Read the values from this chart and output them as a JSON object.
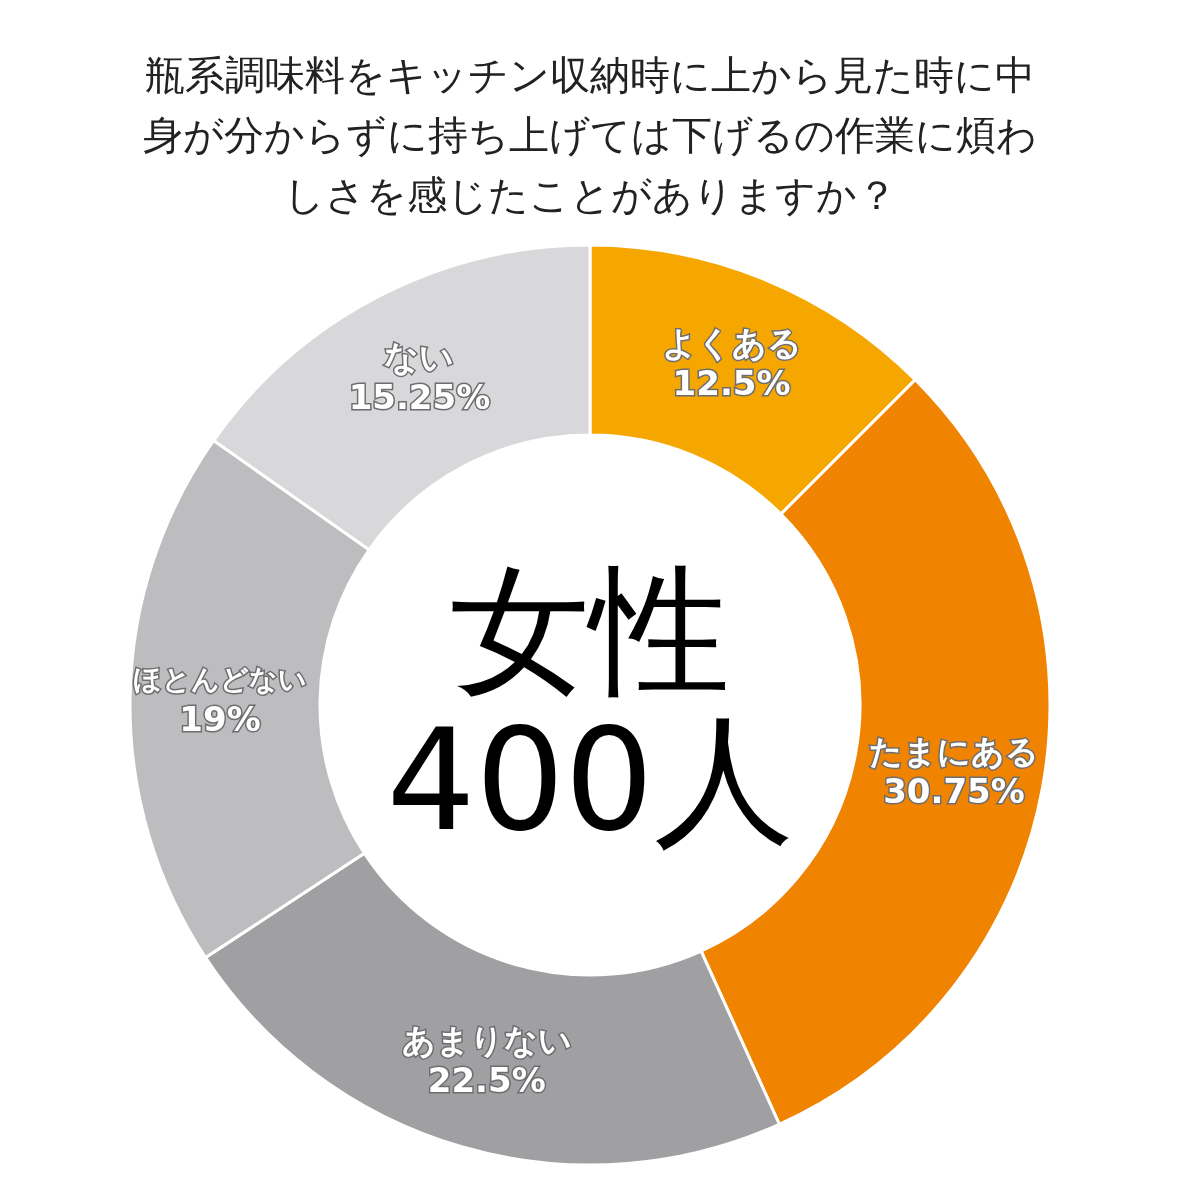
{
  "chart_data": {
    "type": "donut",
    "title": "瓶系調味料をキッチン収納時に上から見た時に中身が分からずに持ち上げては下げるの作業に煩わしさを感じたことがありますか？",
    "categories": [
      "よくある",
      "たまにある",
      "あまりない",
      "ほとんどない",
      "ない"
    ],
    "values": [
      12.5,
      30.75,
      22.5,
      19,
      15.25
    ],
    "value_labels": [
      "12.5%",
      "30.75%",
      "22.5%",
      "19%",
      "15.25%"
    ],
    "colors": [
      "#f5a700",
      "#f08300",
      "#a09fa2",
      "#bdbcbe",
      "#d8d7d9"
    ],
    "annotations": [
      "女性",
      "400人"
    ],
    "legend": false
  }
}
